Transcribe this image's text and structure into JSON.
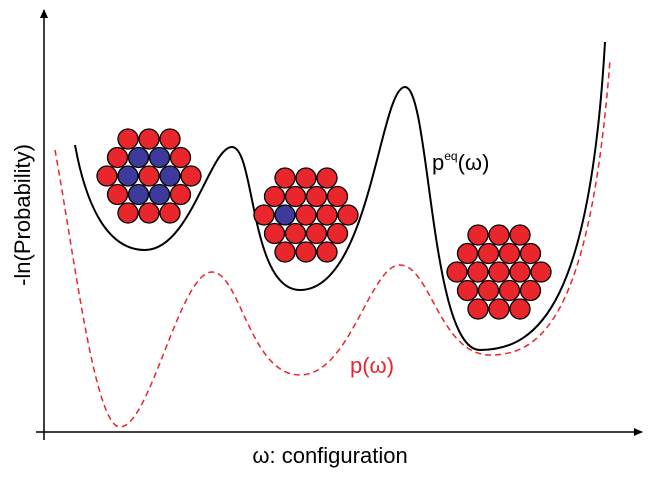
{
  "axes": {
    "y_label": "-ln(Probability)",
    "x_label": "ω: configuration"
  },
  "curves": [
    {
      "label": "p",
      "superscript": "eq",
      "suffix": "(ω)"
    },
    {
      "label": "p(ω)"
    }
  ]
}
